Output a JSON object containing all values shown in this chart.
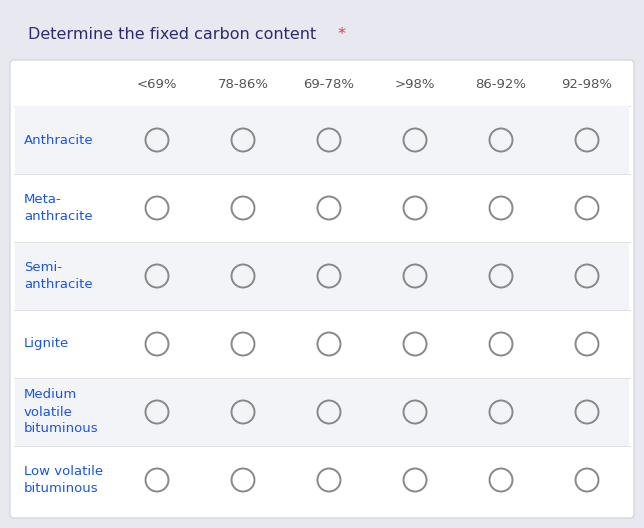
{
  "title": "Determine the fixed carbon content",
  "title_star": " *",
  "title_color": "#2c2c6c",
  "star_color": "#e53935",
  "columns": [
    "<69%",
    "78-86%",
    "69-78%",
    ">98%",
    "86-92%",
    "92-98%"
  ],
  "rows": [
    "Anthracite",
    "Meta-\nanthracite",
    "Semi-\nanthracite",
    "Lignite",
    "Medium\nvolatile\nbituminous",
    "Low volatile\nbituminous"
  ],
  "row_label_color": "#1a56db",
  "col_label_color": "#555555",
  "circle_edge_color": "#888888",
  "circle_linewidth": 1.4,
  "outer_bg": "#e8e8f0",
  "table_bg": "#ffffff",
  "row_bg_shaded": "#f3f4f8",
  "row_bg_white": "#ffffff",
  "separator_color": "#e0e0e0",
  "col_label_fontsize": 9.5,
  "row_label_fontsize": 9.5,
  "title_fontsize": 11.5
}
